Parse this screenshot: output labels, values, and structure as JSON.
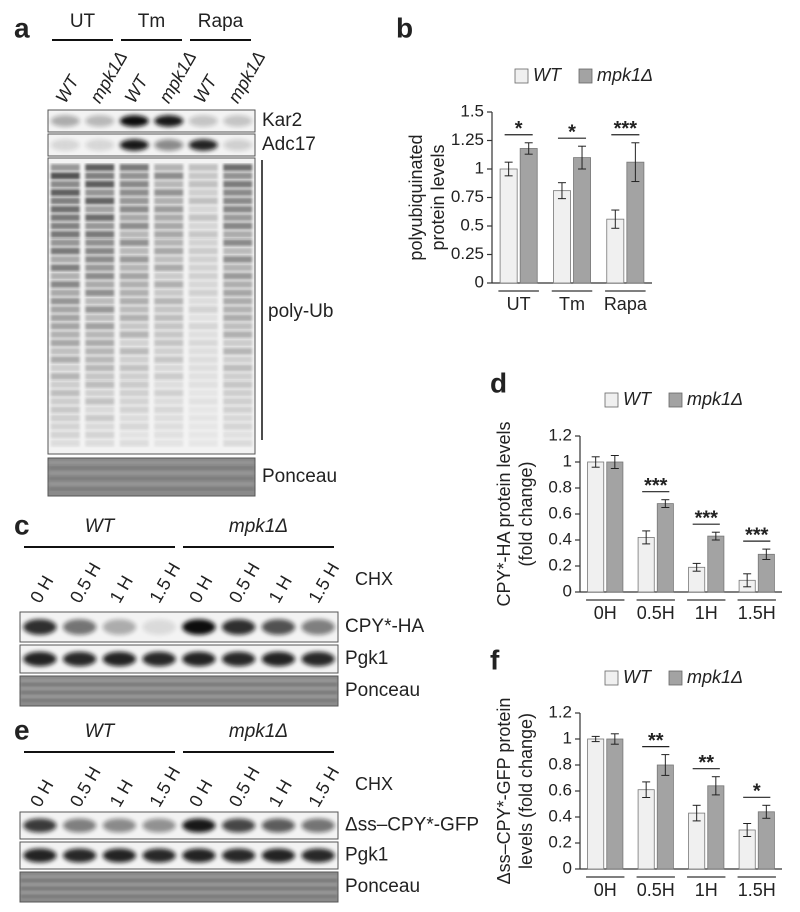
{
  "figure": {
    "a": {
      "letter": "a",
      "groups": [
        "UT",
        "Tm",
        "Rapa"
      ],
      "lanes": [
        "WT",
        "mpk1Δ",
        "WT",
        "mpk1Δ",
        "WT",
        "mpk1Δ"
      ],
      "blots": [
        "Kar2",
        "Adc17",
        "poly-Ub",
        "Ponceau"
      ]
    },
    "c": {
      "letter": "c",
      "groups": [
        "WT",
        "mpk1Δ"
      ],
      "lanes": [
        "0 H",
        "0.5 H",
        "1 H",
        "1.5 H",
        "0 H",
        "0.5 H",
        "1 H",
        "1.5 H"
      ],
      "treatment": "CHX",
      "blots": [
        "CPY*-HA",
        "Pgk1",
        "Ponceau"
      ]
    },
    "e": {
      "letter": "e",
      "groups": [
        "WT",
        "mpk1Δ"
      ],
      "lanes": [
        "0 H",
        "0.5 H",
        "1 H",
        "1.5 H",
        "0 H",
        "0.5 H",
        "1 H",
        "1.5 H"
      ],
      "treatment": "CHX",
      "blots": [
        "Δss–CPY*-GFP",
        "Pgk1",
        "Ponceau"
      ]
    }
  },
  "chart_data": [
    {
      "type": "bar",
      "letter": "b",
      "ylabel": [
        "polyubiquinated",
        "protein levels"
      ],
      "categories": [
        "UT",
        "Tm",
        "Rapa"
      ],
      "series": [
        {
          "name": "WT",
          "color": "#f0f0f0",
          "values": [
            1,
            0.81,
            0.56
          ],
          "errors": [
            0.06,
            0.07,
            0.08
          ]
        },
        {
          "name": "mpk1Δ",
          "color": "#a3a3a3",
          "values": [
            1.18,
            1.1,
            1.06
          ],
          "errors": [
            0.05,
            0.1,
            0.17
          ]
        }
      ],
      "significance": [
        "*",
        "*",
        "***"
      ],
      "ylim": [
        0,
        1.5
      ],
      "yticks": [
        0,
        0.25,
        0.5,
        0.75,
        1,
        1.25,
        1.5
      ]
    },
    {
      "type": "bar",
      "letter": "d",
      "ylabel": [
        "CPY*-HA protein levels",
        "(fold change)"
      ],
      "categories": [
        "0H",
        "0.5H",
        "1H",
        "1.5H"
      ],
      "series": [
        {
          "name": "WT",
          "color": "#f0f0f0",
          "values": [
            1,
            0.42,
            0.19,
            0.09
          ],
          "errors": [
            0.04,
            0.05,
            0.03,
            0.05
          ]
        },
        {
          "name": "mpk1Δ",
          "color": "#a3a3a3",
          "values": [
            1,
            0.68,
            0.43,
            0.29
          ],
          "errors": [
            0.05,
            0.03,
            0.03,
            0.04
          ]
        }
      ],
      "significance": [
        null,
        "***",
        "***",
        "***"
      ],
      "ylim": [
        0,
        1.2
      ],
      "yticks": [
        0,
        0.2,
        0.4,
        0.6,
        0.8,
        1,
        1.2
      ]
    },
    {
      "type": "bar",
      "letter": "f",
      "ylabel": [
        "Δss–CPY*-GFP protein",
        "levels (fold change)"
      ],
      "categories": [
        "0H",
        "0.5H",
        "1H",
        "1.5H"
      ],
      "series": [
        {
          "name": "WT",
          "color": "#f0f0f0",
          "values": [
            1,
            0.61,
            0.43,
            0.3
          ],
          "errors": [
            0.02,
            0.06,
            0.06,
            0.05
          ]
        },
        {
          "name": "mpk1Δ",
          "color": "#a3a3a3",
          "values": [
            1,
            0.8,
            0.64,
            0.44
          ],
          "errors": [
            0.04,
            0.08,
            0.07,
            0.05
          ]
        }
      ],
      "significance": [
        null,
        "**",
        "**",
        "*"
      ],
      "ylim": [
        0,
        1.2
      ],
      "yticks": [
        0,
        0.2,
        0.4,
        0.6,
        0.8,
        1,
        1.2
      ]
    }
  ]
}
